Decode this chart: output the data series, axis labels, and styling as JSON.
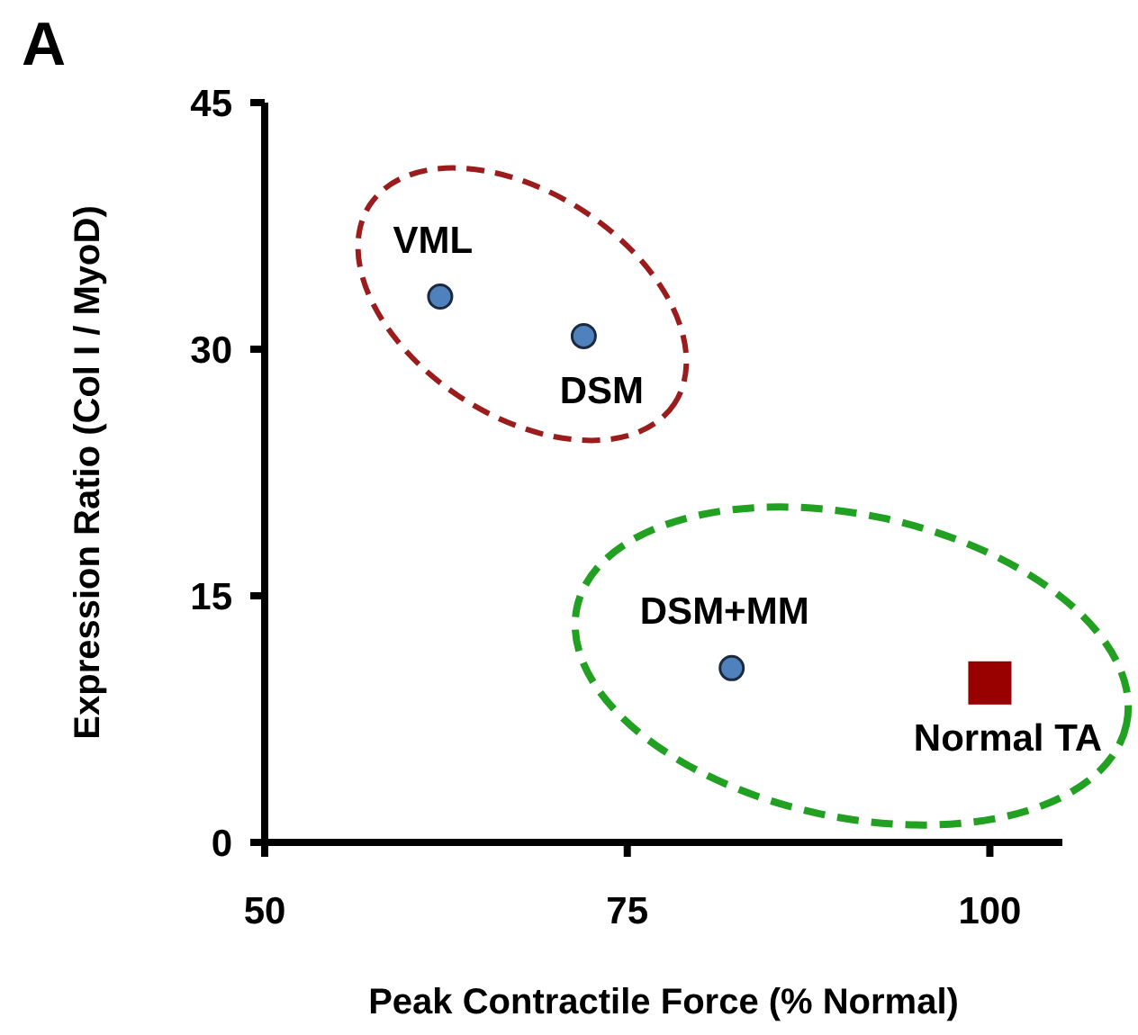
{
  "chart_data": {
    "type": "scatter",
    "title": "A",
    "xlabel": "Peak Contractile Force (% Normal)",
    "ylabel": "Expression Ratio (Col I / MyoD)",
    "xlim": [
      50,
      105
    ],
    "xticks": [
      50,
      75,
      100
    ],
    "ylim": [
      0,
      45
    ],
    "yticks": [
      0,
      15,
      30,
      45
    ],
    "grid": false,
    "legend": false,
    "series": [
      {
        "x": [
          62.1,
          72.0,
          82.2
        ],
        "values": [
          33.2,
          30.8,
          10.6
        ],
        "color": "#4f81bd",
        "marker": "circle"
      },
      {
        "x": [
          100
        ],
        "values": [
          9.7
        ],
        "color": "#990000",
        "marker": "square"
      }
    ],
    "annotations": [
      {
        "text": "VML",
        "x": 62.1,
        "y": 33.2
      },
      {
        "text": "DSM",
        "x": 72.0,
        "y": 30.8
      },
      {
        "text": "DSM+MM",
        "x": 82.2,
        "y": 10.6
      },
      {
        "text": "Normal TA",
        "x": 100,
        "y": 9.7
      }
    ]
  }
}
